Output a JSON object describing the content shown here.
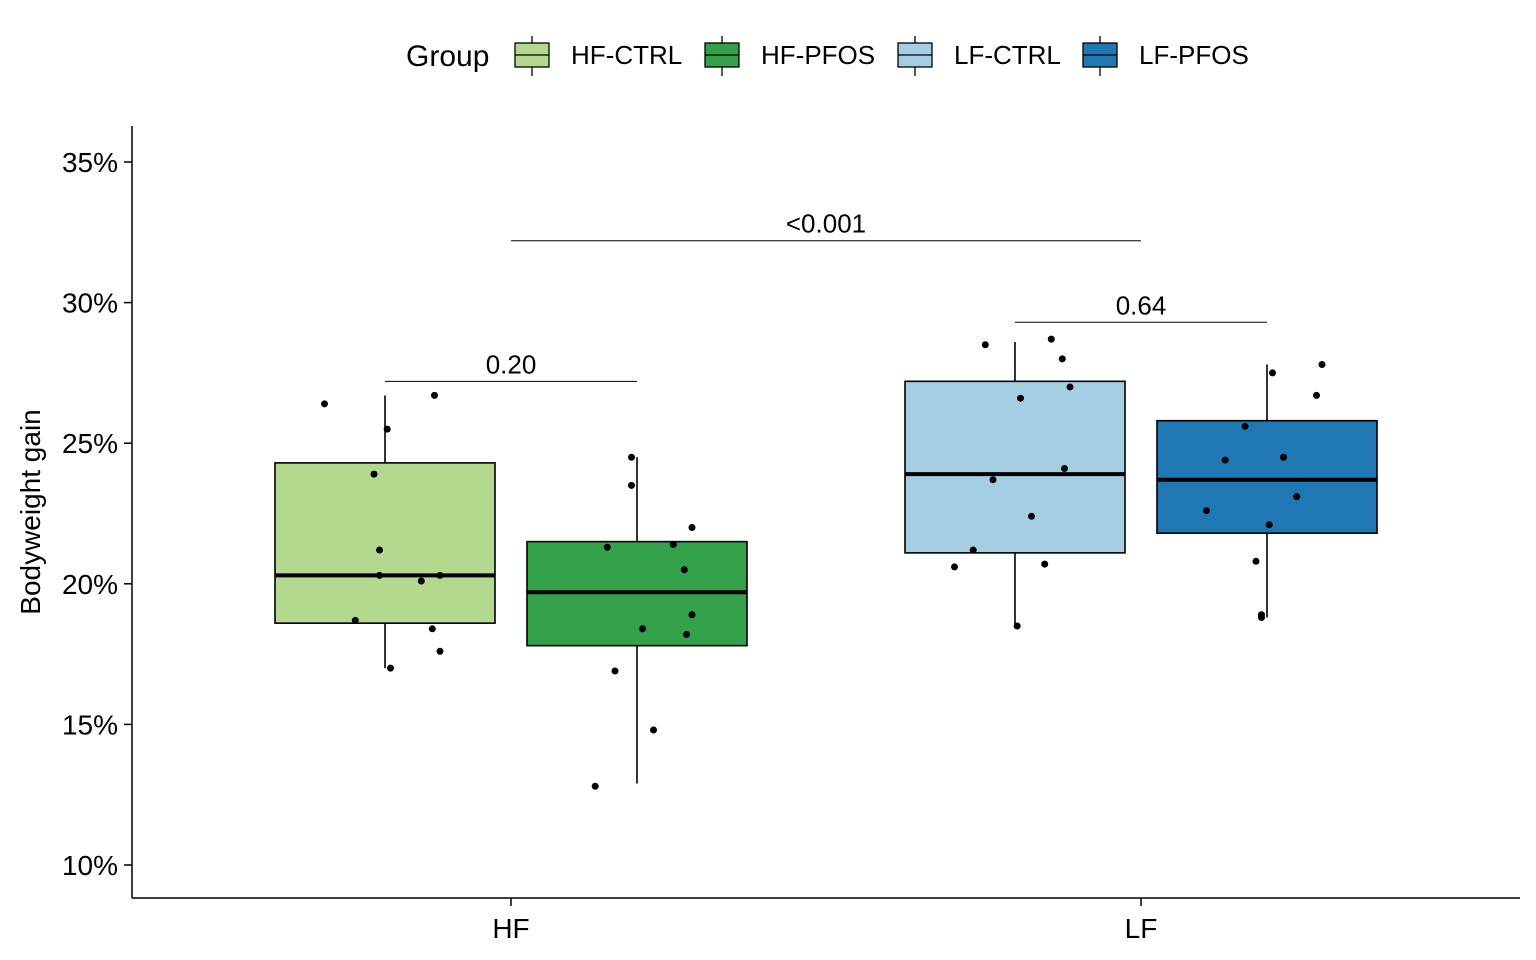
{
  "chart_data": {
    "type": "box",
    "ylabel": "Bodyweight gain",
    "xlabel": "",
    "ylim": [
      0.088,
      0.364
    ],
    "y_ticks": [
      0.1,
      0.15,
      0.2,
      0.25,
      0.3,
      0.35
    ],
    "y_tick_labels": [
      "10%",
      "15%",
      "20%",
      "25%",
      "30%",
      "35%"
    ],
    "categories": [
      "HF",
      "LF"
    ],
    "legend": {
      "title": "Group",
      "position": "top",
      "entries": [
        "HF-CTRL",
        "HF-PFOS",
        "LF-CTRL",
        "LF-PFOS"
      ]
    },
    "series": [
      {
        "name": "HF-CTRL",
        "category": "HF",
        "color": "#b2d98d",
        "whisker_low": 0.17,
        "q1": 0.186,
        "median": 0.203,
        "q3": 0.243,
        "whisker_high": 0.267,
        "points": [
          0.264,
          0.255,
          0.239,
          0.212,
          0.203,
          0.203,
          0.201,
          0.187,
          0.184,
          0.176,
          0.17,
          0.267
        ]
      },
      {
        "name": "HF-PFOS",
        "category": "HF",
        "color": "#33a04a",
        "whisker_low": 0.129,
        "q1": 0.178,
        "median": 0.197,
        "q3": 0.215,
        "whisker_high": 0.245,
        "points": [
          0.245,
          0.235,
          0.22,
          0.214,
          0.213,
          0.205,
          0.189,
          0.184,
          0.182,
          0.169,
          0.148,
          0.128
        ]
      },
      {
        "name": "LF-CTRL",
        "category": "LF",
        "color": "#a6cee3",
        "whisker_low": 0.185,
        "q1": 0.211,
        "median": 0.239,
        "q3": 0.272,
        "whisker_high": 0.286,
        "points": [
          0.287,
          0.285,
          0.28,
          0.27,
          0.266,
          0.241,
          0.237,
          0.224,
          0.212,
          0.207,
          0.206,
          0.185
        ]
      },
      {
        "name": "LF-PFOS",
        "category": "LF",
        "color": "#1f78b4",
        "whisker_low": 0.188,
        "q1": 0.218,
        "median": 0.237,
        "q3": 0.258,
        "whisker_high": 0.278,
        "points": [
          0.278,
          0.275,
          0.267,
          0.256,
          0.245,
          0.244,
          0.231,
          0.226,
          0.221,
          0.208,
          0.189,
          0.188
        ]
      }
    ],
    "comparisons": [
      {
        "label": "0.20",
        "from": "HF-CTRL",
        "to": "HF-PFOS",
        "y": 0.272
      },
      {
        "label": "0.64",
        "from": "LF-CTRL",
        "to": "LF-PFOS",
        "y": 0.293
      },
      {
        "label": "<0.001",
        "from": "HF",
        "to": "LF",
        "y": 0.322
      }
    ]
  }
}
